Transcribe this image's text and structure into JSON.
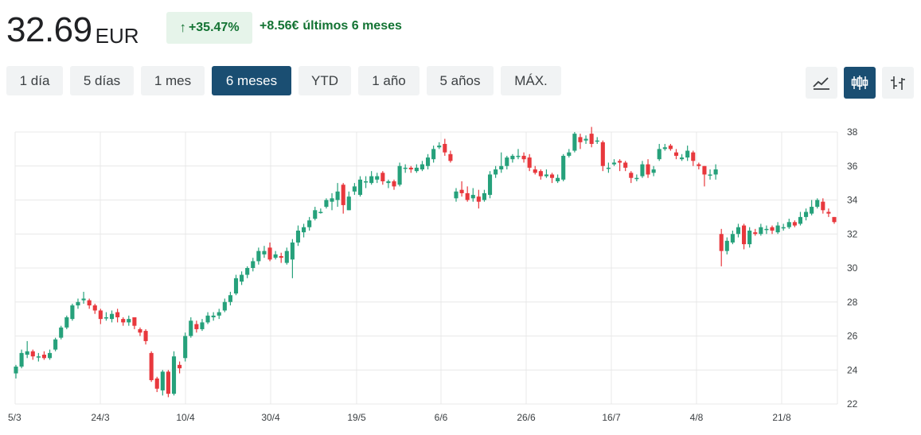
{
  "quote": {
    "price": "32.69",
    "currency": "EUR",
    "change_pct": "+35.47%",
    "change_abs": "+8.56€",
    "period_text": "últimos 6 meses"
  },
  "ranges": [
    "1 día",
    "5 días",
    "1 mes",
    "6 meses",
    "YTD",
    "1 año",
    "5 años",
    "MÁX."
  ],
  "active_range": "6 meses",
  "chart_types": [
    {
      "icon": "line-chart-icon",
      "active": false
    },
    {
      "icon": "candlestick-chart-icon",
      "active": true
    },
    {
      "icon": "ohlc-chart-icon",
      "active": false
    }
  ],
  "colors": {
    "up": "#26a17b",
    "down": "#e8383d",
    "grid": "#e8e8e8",
    "accent": "#1a4e72",
    "positive_text": "#137333"
  },
  "chart_data": {
    "type": "candlestick",
    "x_ticks": [
      "5/3",
      "24/3",
      "10/4",
      "30/4",
      "19/5",
      "6/6",
      "26/6",
      "16/7",
      "4/8",
      "21/8"
    ],
    "y_ticks": [
      22,
      24,
      26,
      28,
      30,
      32,
      34,
      36,
      38
    ],
    "ylim": [
      22,
      38
    ],
    "grid": true,
    "candles": [
      [
        23.8,
        24.2,
        23.5,
        24.3
      ],
      [
        24.2,
        25.0,
        24.1,
        25.2
      ],
      [
        24.9,
        25.1,
        24.7,
        25.7
      ],
      [
        25.1,
        24.8,
        24.6,
        25.2
      ],
      [
        24.8,
        24.8,
        24.5,
        25.0
      ],
      [
        24.9,
        24.7,
        24.6,
        25.1
      ],
      [
        24.7,
        25.0,
        24.6,
        25.2
      ],
      [
        25.2,
        25.8,
        25.1,
        25.9
      ],
      [
        25.9,
        26.5,
        25.8,
        26.6
      ],
      [
        26.5,
        27.1,
        26.4,
        27.2
      ],
      [
        27.0,
        27.8,
        26.9,
        27.9
      ],
      [
        27.8,
        28.0,
        27.6,
        28.2
      ],
      [
        28.1,
        28.2,
        27.9,
        28.6
      ],
      [
        28.1,
        27.8,
        27.6,
        28.2
      ],
      [
        27.8,
        27.5,
        27.3,
        27.9
      ],
      [
        27.5,
        27.0,
        26.7,
        27.6
      ],
      [
        27.1,
        27.1,
        26.9,
        27.4
      ],
      [
        27.0,
        27.3,
        26.8,
        27.5
      ],
      [
        27.4,
        27.1,
        26.8,
        27.6
      ],
      [
        27.0,
        26.8,
        26.6,
        27.1
      ],
      [
        26.8,
        27.0,
        26.6,
        27.2
      ],
      [
        27.1,
        26.6,
        26.4,
        27.1
      ],
      [
        26.4,
        26.2,
        26.0,
        26.5
      ],
      [
        26.3,
        25.7,
        25.5,
        26.4
      ],
      [
        25.0,
        23.4,
        23.3,
        25.1
      ],
      [
        23.5,
        22.9,
        22.7,
        23.6
      ],
      [
        22.8,
        23.9,
        22.5,
        24.0
      ],
      [
        23.9,
        22.6,
        22.4,
        24.0
      ],
      [
        22.6,
        24.8,
        22.5,
        25.1
      ],
      [
        24.3,
        24.1,
        23.8,
        24.5
      ],
      [
        24.7,
        26.0,
        24.5,
        26.2
      ],
      [
        26.0,
        26.9,
        25.9,
        27.1
      ],
      [
        26.7,
        26.4,
        26.2,
        26.9
      ],
      [
        26.4,
        26.8,
        26.3,
        27.0
      ],
      [
        26.8,
        27.2,
        26.7,
        27.4
      ],
      [
        27.1,
        27.2,
        26.9,
        27.4
      ],
      [
        27.2,
        27.4,
        27.0,
        27.6
      ],
      [
        27.5,
        28.0,
        27.4,
        28.2
      ],
      [
        28.0,
        28.4,
        27.8,
        28.6
      ],
      [
        28.5,
        29.4,
        28.4,
        29.6
      ],
      [
        29.2,
        29.6,
        29.0,
        29.8
      ],
      [
        29.6,
        30.0,
        29.4,
        30.1
      ],
      [
        30.0,
        30.4,
        29.8,
        30.6
      ],
      [
        30.4,
        31.0,
        30.2,
        31.2
      ],
      [
        30.8,
        31.0,
        30.6,
        31.3
      ],
      [
        31.2,
        30.5,
        30.4,
        31.5
      ],
      [
        30.6,
        30.8,
        30.5,
        31.0
      ],
      [
        30.7,
        30.6,
        30.3,
        30.9
      ],
      [
        30.3,
        31.0,
        30.2,
        31.2
      ],
      [
        30.5,
        31.5,
        29.4,
        31.7
      ],
      [
        31.5,
        32.2,
        31.3,
        32.5
      ],
      [
        32.1,
        32.4,
        31.8,
        32.6
      ],
      [
        32.4,
        32.8,
        32.2,
        33.0
      ],
      [
        32.9,
        33.4,
        32.8,
        33.6
      ],
      [
        33.3,
        33.3,
        33.2,
        33.5
      ],
      [
        33.6,
        34.0,
        33.5,
        34.1
      ],
      [
        33.9,
        34.1,
        33.4,
        34.4
      ],
      [
        34.0,
        34.5,
        33.6,
        35.0
      ],
      [
        34.9,
        33.7,
        33.2,
        35.0
      ],
      [
        33.4,
        34.2,
        33.4,
        34.5
      ],
      [
        34.5,
        34.8,
        34.3,
        35.0
      ],
      [
        34.3,
        35.2,
        34.2,
        35.4
      ],
      [
        35.1,
        35.1,
        34.7,
        35.4
      ],
      [
        35.0,
        35.4,
        34.9,
        35.7
      ],
      [
        35.2,
        35.4,
        35.0,
        35.6
      ],
      [
        35.6,
        35.1,
        34.9,
        35.7
      ],
      [
        35.0,
        35.1,
        34.7,
        35.2
      ],
      [
        35.1,
        34.8,
        34.6,
        35.2
      ],
      [
        34.9,
        36.0,
        34.8,
        36.2
      ],
      [
        35.9,
        35.9,
        35.6,
        36.1
      ],
      [
        35.9,
        35.8,
        35.6,
        36.0
      ],
      [
        35.7,
        35.9,
        35.6,
        36.1
      ],
      [
        35.8,
        36.1,
        35.7,
        36.3
      ],
      [
        36.0,
        36.5,
        35.8,
        36.7
      ],
      [
        36.4,
        37.0,
        36.2,
        37.2
      ],
      [
        37.1,
        37.2,
        37.0,
        37.4
      ],
      [
        37.3,
        36.8,
        36.6,
        37.6
      ],
      [
        36.7,
        36.3,
        36.2,
        36.9
      ],
      [
        34.1,
        34.5,
        33.9,
        34.7
      ],
      [
        34.6,
        34.4,
        34.2,
        35.1
      ],
      [
        34.4,
        34.0,
        33.9,
        34.8
      ],
      [
        34.1,
        34.3,
        33.9,
        34.7
      ],
      [
        34.2,
        33.9,
        33.5,
        34.6
      ],
      [
        34.0,
        34.4,
        33.9,
        34.6
      ],
      [
        34.3,
        35.5,
        34.1,
        35.7
      ],
      [
        35.5,
        35.8,
        35.3,
        36.0
      ],
      [
        35.8,
        36.0,
        35.6,
        36.8
      ],
      [
        36.0,
        36.5,
        35.8,
        36.6
      ],
      [
        36.4,
        36.6,
        36.2,
        36.7
      ],
      [
        36.6,
        36.6,
        36.4,
        37.0
      ],
      [
        36.6,
        36.4,
        36.2,
        36.8
      ],
      [
        36.5,
        35.9,
        35.7,
        36.7
      ],
      [
        35.8,
        35.6,
        35.5,
        36.0
      ],
      [
        35.7,
        35.4,
        35.2,
        35.8
      ],
      [
        35.4,
        35.5,
        35.3,
        35.8
      ],
      [
        35.5,
        35.3,
        35.0,
        35.6
      ],
      [
        35.1,
        35.3,
        35.0,
        35.5
      ],
      [
        35.2,
        36.6,
        35.1,
        36.7
      ],
      [
        36.6,
        36.8,
        36.5,
        37.0
      ],
      [
        36.9,
        37.9,
        36.8,
        38.0
      ],
      [
        37.7,
        37.4,
        37.0,
        37.9
      ],
      [
        37.5,
        37.6,
        37.3,
        37.8
      ],
      [
        37.9,
        37.3,
        37.1,
        38.3
      ],
      [
        37.5,
        37.5,
        37.3,
        37.7
      ],
      [
        37.4,
        36.0,
        35.7,
        37.5
      ],
      [
        35.9,
        35.9,
        35.6,
        36.2
      ],
      [
        36.1,
        36.2,
        36.0,
        36.4
      ],
      [
        36.3,
        36.2,
        35.7,
        36.4
      ],
      [
        36.2,
        35.9,
        35.7,
        36.3
      ],
      [
        35.6,
        35.3,
        35.0,
        35.7
      ],
      [
        35.3,
        35.3,
        35.1,
        35.5
      ],
      [
        35.4,
        36.1,
        35.3,
        36.3
      ],
      [
        36.1,
        35.5,
        35.3,
        36.4
      ],
      [
        35.6,
        35.8,
        35.4,
        36.0
      ],
      [
        36.4,
        37.0,
        36.3,
        37.3
      ],
      [
        37.0,
        37.1,
        36.9,
        37.3
      ],
      [
        37.2,
        37.0,
        36.9,
        37.3
      ],
      [
        36.8,
        36.6,
        36.4,
        37.0
      ],
      [
        36.4,
        36.5,
        36.3,
        36.7
      ],
      [
        36.5,
        36.9,
        36.3,
        37.2
      ],
      [
        36.8,
        36.3,
        36.0,
        36.9
      ],
      [
        36.1,
        36.0,
        35.8,
        36.2
      ],
      [
        36.0,
        35.5,
        34.8,
        36.0
      ],
      [
        35.5,
        35.5,
        35.2,
        35.8
      ],
      [
        35.5,
        35.8,
        35.2,
        36.1
      ],
      [
        32.0,
        31.0,
        30.1,
        32.3
      ],
      [
        31.0,
        31.6,
        30.8,
        31.8
      ],
      [
        31.5,
        32.0,
        31.4,
        32.2
      ],
      [
        32.0,
        32.4,
        31.8,
        32.6
      ],
      [
        32.5,
        31.4,
        31.1,
        32.6
      ],
      [
        31.4,
        32.2,
        31.2,
        32.4
      ],
      [
        32.1,
        32.0,
        31.9,
        32.3
      ],
      [
        32.0,
        32.4,
        31.9,
        32.6
      ],
      [
        32.3,
        32.3,
        32.0,
        32.5
      ],
      [
        32.4,
        32.2,
        32.0,
        32.5
      ],
      [
        32.1,
        32.5,
        32.0,
        32.7
      ],
      [
        32.4,
        32.4,
        32.2,
        32.6
      ],
      [
        32.4,
        32.7,
        32.3,
        32.9
      ],
      [
        32.7,
        32.5,
        32.4,
        32.8
      ],
      [
        32.6,
        33.0,
        32.5,
        33.3
      ],
      [
        33.0,
        33.3,
        32.8,
        33.5
      ],
      [
        33.2,
        33.6,
        33.1,
        34.0
      ],
      [
        33.6,
        34.0,
        33.5,
        34.1
      ],
      [
        33.9,
        33.4,
        33.2,
        34.1
      ],
      [
        33.3,
        33.2,
        33.0,
        33.5
      ],
      [
        33.0,
        32.7,
        32.6,
        33.0
      ]
    ]
  }
}
